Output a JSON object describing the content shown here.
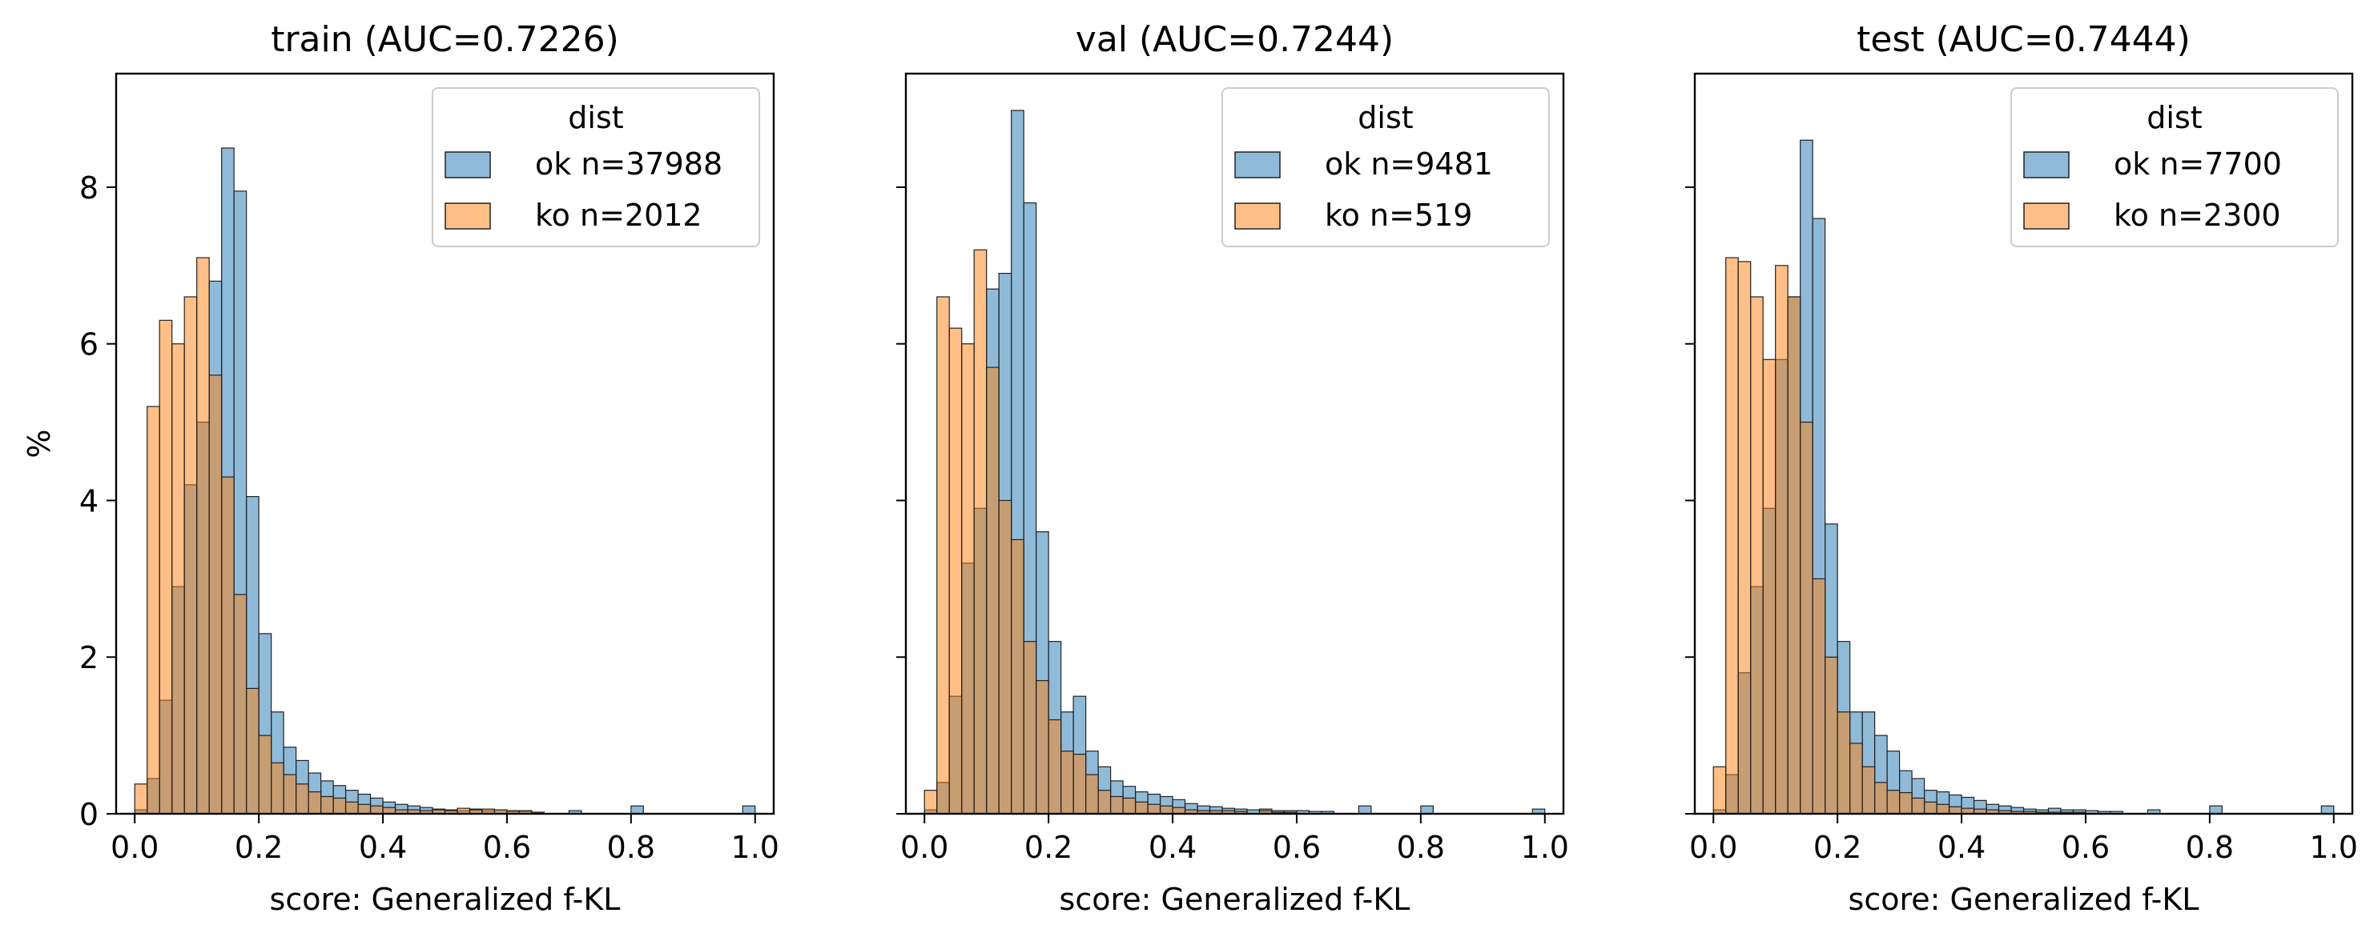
{
  "chart_data": [
    {
      "type": "histogram",
      "title": "train (AUC=0.7226)",
      "xlabel": "score: Generalized f-KL",
      "ylabel": "%",
      "xlim": [
        -0.03,
        1.03
      ],
      "ylim": [
        0,
        9.45
      ],
      "x_ticks": [
        "0.0",
        "0.2",
        "0.4",
        "0.6",
        "0.8",
        "1.0"
      ],
      "y_ticks": [
        "0",
        "2",
        "4",
        "6",
        "8"
      ],
      "grid": false,
      "legend": {
        "title": "dist",
        "position": "top-right"
      },
      "bin_width": 0.02,
      "bin_starts": [
        0.0,
        0.02,
        0.04,
        0.06,
        0.08,
        0.1,
        0.12,
        0.14,
        0.16,
        0.18,
        0.2,
        0.22,
        0.24,
        0.26,
        0.28,
        0.3,
        0.32,
        0.34,
        0.36,
        0.38,
        0.4,
        0.42,
        0.44,
        0.46,
        0.48,
        0.5,
        0.52,
        0.54,
        0.56,
        0.58,
        0.6,
        0.62,
        0.64,
        0.7,
        0.8,
        0.98
      ],
      "series": [
        {
          "name": "ok n=37988",
          "color": "#1f77b4",
          "values": [
            0.05,
            0.45,
            1.45,
            2.9,
            4.2,
            5.0,
            6.8,
            8.5,
            7.95,
            4.05,
            2.3,
            1.3,
            0.85,
            0.68,
            0.52,
            0.42,
            0.36,
            0.3,
            0.25,
            0.2,
            0.15,
            0.12,
            0.1,
            0.08,
            0.06,
            0.05,
            0.04,
            0.06,
            0.04,
            0.05,
            0.03,
            0.03,
            0.02,
            0.04,
            0.1,
            0.1
          ]
        },
        {
          "name": "ko n=2012",
          "color": "#ff7f0e",
          "values": [
            0.38,
            5.2,
            6.3,
            6.0,
            6.6,
            7.1,
            5.6,
            4.3,
            2.8,
            1.6,
            1.0,
            0.65,
            0.5,
            0.38,
            0.28,
            0.22,
            0.2,
            0.15,
            0.12,
            0.1,
            0.08,
            0.05,
            0.05,
            0.04,
            0.05,
            0.04,
            0.07,
            0.05,
            0.06,
            0.05,
            0.04,
            0.04,
            0.02,
            0.0,
            0.0,
            0.0
          ]
        }
      ]
    },
    {
      "type": "histogram",
      "title": "val (AUC=0.7244)",
      "xlabel": "score: Generalized f-KL",
      "ylabel": "",
      "xlim": [
        -0.03,
        1.03
      ],
      "ylim": [
        0,
        9.45
      ],
      "x_ticks": [
        "0.0",
        "0.2",
        "0.4",
        "0.6",
        "0.8",
        "1.0"
      ],
      "y_ticks": [
        "0",
        "2",
        "4",
        "6",
        "8"
      ],
      "grid": false,
      "legend": {
        "title": "dist",
        "position": "top-right"
      },
      "bin_width": 0.02,
      "bin_starts": [
        0.0,
        0.02,
        0.04,
        0.06,
        0.08,
        0.1,
        0.12,
        0.14,
        0.16,
        0.18,
        0.2,
        0.22,
        0.24,
        0.26,
        0.28,
        0.3,
        0.32,
        0.34,
        0.36,
        0.38,
        0.4,
        0.42,
        0.44,
        0.46,
        0.48,
        0.5,
        0.52,
        0.54,
        0.56,
        0.58,
        0.6,
        0.62,
        0.64,
        0.7,
        0.8,
        0.98
      ],
      "series": [
        {
          "name": "ok n=9481",
          "color": "#1f77b4",
          "values": [
            0.05,
            0.4,
            1.5,
            3.2,
            3.9,
            6.7,
            6.9,
            8.98,
            7.8,
            3.6,
            2.2,
            1.3,
            1.5,
            0.8,
            0.6,
            0.42,
            0.35,
            0.28,
            0.25,
            0.22,
            0.18,
            0.13,
            0.1,
            0.09,
            0.07,
            0.06,
            0.05,
            0.06,
            0.04,
            0.04,
            0.04,
            0.03,
            0.03,
            0.1,
            0.1,
            0.06
          ]
        },
        {
          "name": "ko n=519",
          "color": "#ff7f0e",
          "values": [
            0.3,
            6.6,
            6.2,
            6.0,
            7.2,
            5.7,
            4.0,
            3.5,
            2.2,
            1.7,
            1.2,
            0.8,
            0.76,
            0.5,
            0.3,
            0.22,
            0.2,
            0.15,
            0.12,
            0.1,
            0.08,
            0.05,
            0.04,
            0.04,
            0.04,
            0.03,
            0.0,
            0.04,
            0.02,
            0.02,
            0.0,
            0.0,
            0.0,
            0.0,
            0.0,
            0.0
          ]
        }
      ]
    },
    {
      "type": "histogram",
      "title": "test (AUC=0.7444)",
      "xlabel": "score: Generalized f-KL",
      "ylabel": "",
      "xlim": [
        -0.03,
        1.03
      ],
      "ylim": [
        0,
        9.45
      ],
      "x_ticks": [
        "0.0",
        "0.2",
        "0.4",
        "0.6",
        "0.8",
        "1.0"
      ],
      "y_ticks": [
        "0",
        "2",
        "4",
        "6",
        "8"
      ],
      "grid": false,
      "legend": {
        "title": "dist",
        "position": "top-right"
      },
      "bin_width": 0.02,
      "bin_starts": [
        0.0,
        0.02,
        0.04,
        0.06,
        0.08,
        0.1,
        0.12,
        0.14,
        0.16,
        0.18,
        0.2,
        0.22,
        0.24,
        0.26,
        0.28,
        0.3,
        0.32,
        0.34,
        0.36,
        0.38,
        0.4,
        0.42,
        0.44,
        0.46,
        0.48,
        0.5,
        0.52,
        0.54,
        0.56,
        0.58,
        0.6,
        0.62,
        0.64,
        0.7,
        0.8,
        0.98
      ],
      "series": [
        {
          "name": "ok n=7700",
          "color": "#1f77b4",
          "values": [
            0.05,
            0.5,
            1.8,
            2.9,
            3.9,
            5.8,
            6.6,
            8.6,
            7.6,
            3.7,
            2.2,
            1.3,
            1.3,
            1.0,
            0.8,
            0.55,
            0.45,
            0.3,
            0.28,
            0.24,
            0.21,
            0.17,
            0.12,
            0.1,
            0.08,
            0.06,
            0.05,
            0.07,
            0.05,
            0.05,
            0.04,
            0.03,
            0.03,
            0.05,
            0.1,
            0.1
          ]
        },
        {
          "name": "ko n=2300",
          "color": "#ff7f0e",
          "values": [
            0.6,
            7.1,
            7.05,
            6.6,
            5.8,
            7.0,
            6.6,
            5.0,
            3.0,
            2.0,
            1.3,
            0.9,
            0.6,
            0.4,
            0.3,
            0.27,
            0.2,
            0.15,
            0.12,
            0.09,
            0.07,
            0.06,
            0.05,
            0.04,
            0.03,
            0.03,
            0.02,
            0.02,
            0.02,
            0.02,
            0.0,
            0.0,
            0.0,
            0.0,
            0.0,
            0.0
          ]
        }
      ]
    }
  ]
}
